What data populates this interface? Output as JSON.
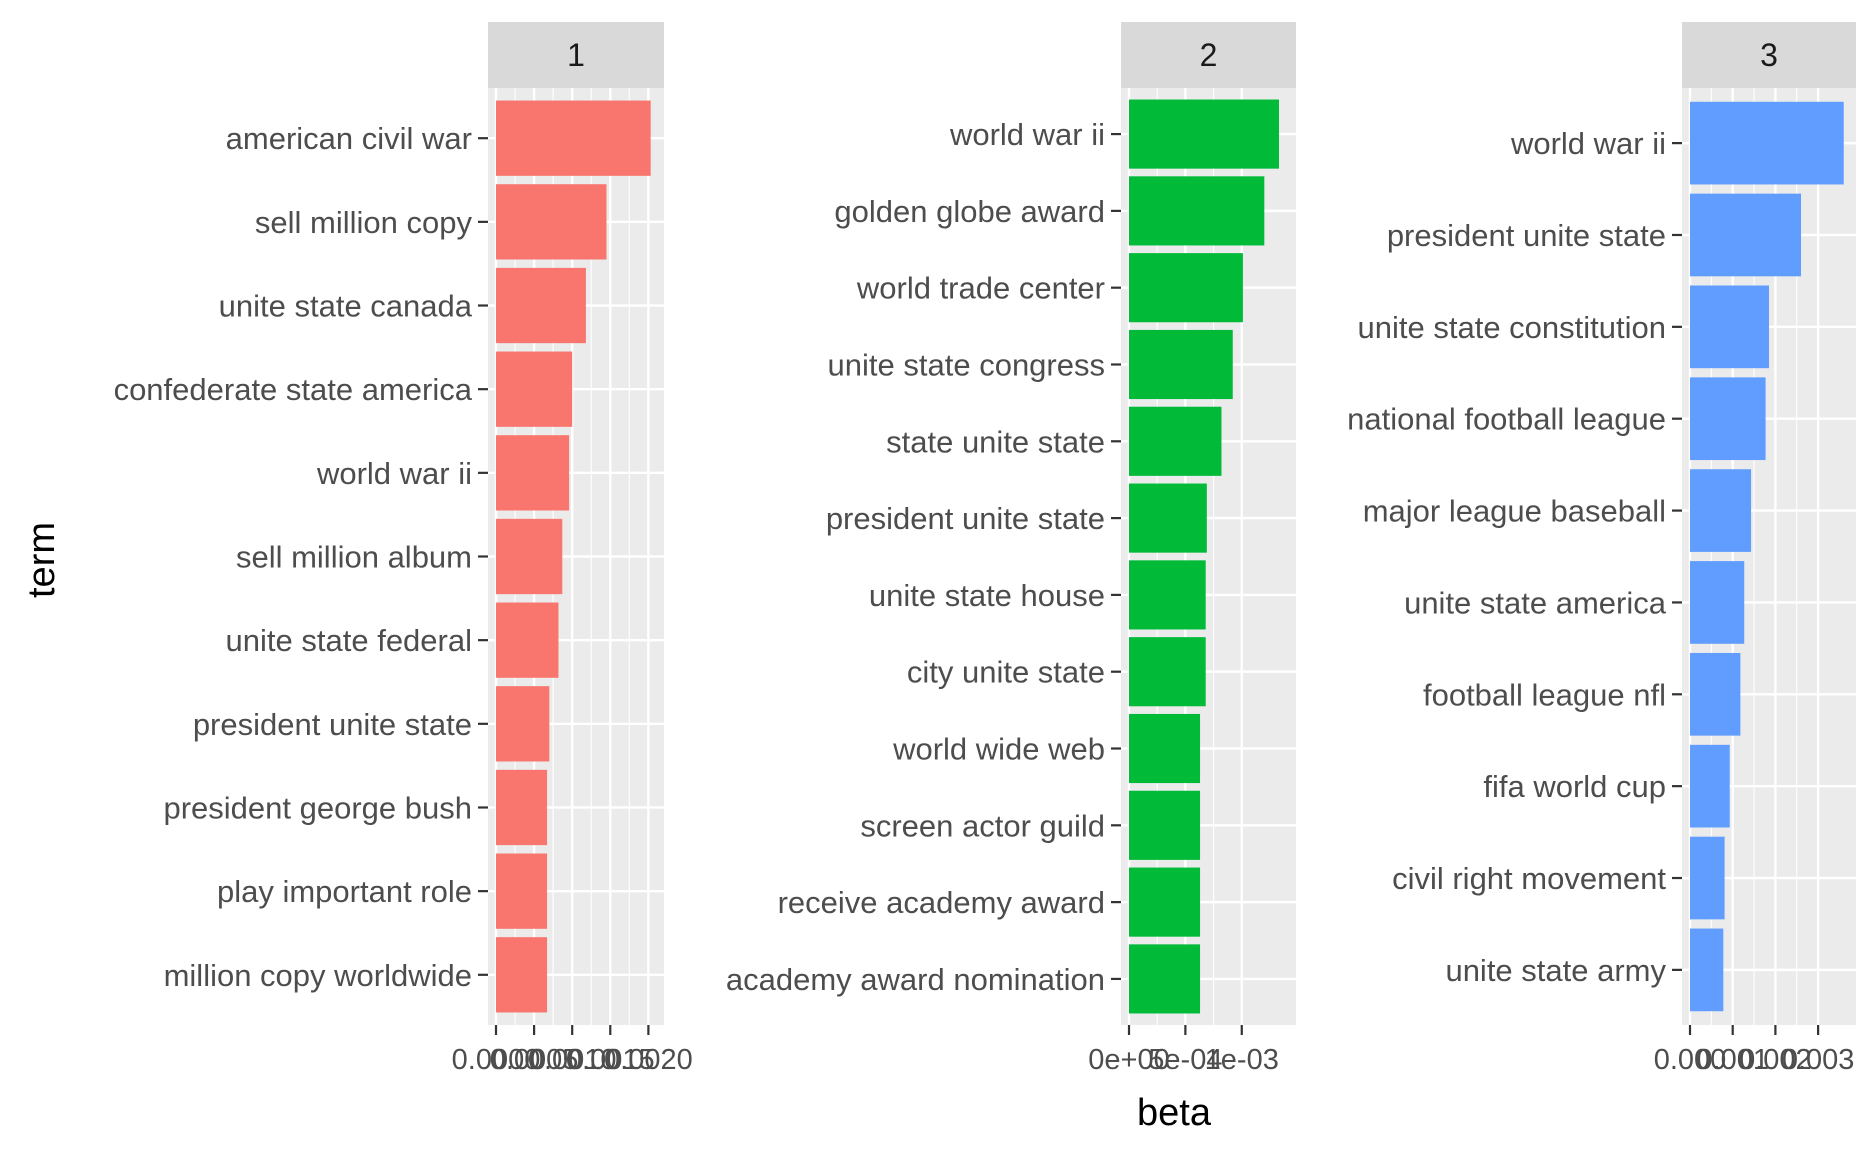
{
  "chart_data": {
    "type": "bar",
    "orientation": "horizontal",
    "facet_by": "topic",
    "xlabel": "beta",
    "ylabel": "term",
    "grid": true,
    "legend": "none",
    "panels": [
      {
        "strip": "1",
        "color": "#F8766D",
        "xlim": [
          0,
          0.0021
        ],
        "x_ticks": [
          0.0,
          0.0005,
          0.001,
          0.0015,
          0.002
        ],
        "x_tick_labels": [
          "0.0000",
          "0.0005",
          "0.0010",
          "0.0015",
          "0.0020"
        ],
        "categories": [
          "american civil war",
          "sell million copy",
          "unite state canada",
          "confederate state america",
          "world war ii",
          "sell million album",
          "unite state federal",
          "president unite state",
          "president george bush",
          "play important role",
          "million copy worldwide"
        ],
        "values": [
          0.00203,
          0.00145,
          0.00118,
          0.001,
          0.00096,
          0.00087,
          0.00082,
          0.0007,
          0.00067,
          0.00067,
          0.00067
        ]
      },
      {
        "strip": "2",
        "color": "#00BA38",
        "xlim": [
          0,
          0.00141
        ],
        "x_ticks": [
          0.0,
          0.0005,
          0.001
        ],
        "x_tick_labels": [
          "0e+00",
          "5e-04",
          "1e-03"
        ],
        "categories": [
          "world war ii",
          "golden globe award",
          "world trade center",
          "unite state congress",
          "state unite state",
          "president unite state",
          "unite state house",
          "city unite state",
          "world wide web",
          "screen actor guild",
          "receive academy award",
          "academy award nomination"
        ],
        "values": [
          0.00133,
          0.0012,
          0.00101,
          0.00092,
          0.00082,
          0.00069,
          0.00068,
          0.00068,
          0.00063,
          0.00063,
          0.00063,
          0.00063
        ]
      },
      {
        "strip": "3",
        "color": "#619CFF",
        "xlim": [
          0,
          0.0037
        ],
        "x_ticks": [
          0.0,
          0.001,
          0.002,
          0.003
        ],
        "x_tick_labels": [
          "0.000",
          "0.001",
          "0.002",
          "0.003"
        ],
        "categories": [
          "world war ii",
          "president unite state",
          "unite state constitution",
          "national football league",
          "major league baseball",
          "unite state america",
          "football league nfl",
          "fifa world cup",
          "civil right movement",
          "unite state army"
        ],
        "values": [
          0.0036,
          0.0026,
          0.00185,
          0.00177,
          0.00143,
          0.00127,
          0.00118,
          0.00093,
          0.00081,
          0.00078
        ]
      }
    ]
  }
}
